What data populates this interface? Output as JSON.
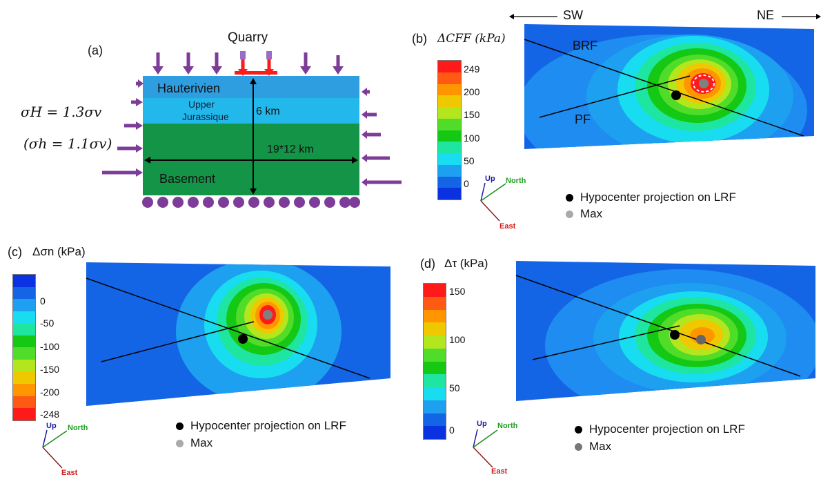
{
  "panel_a": {
    "label": "(a)",
    "quarry": "Quarry",
    "layers": [
      "Hauterivien",
      "Upper",
      "Jurassique",
      "Basement"
    ],
    "depth": "6 km",
    "size": "19*12 km",
    "sigma_H": "σH = 1.3σv",
    "sigma_h": "(σh = 1.1σv)"
  },
  "panel_b": {
    "label": "(b)",
    "title": "ΔCFF (kPa)",
    "ticks": [
      "249",
      "200",
      "150",
      "100",
      "50",
      "0"
    ],
    "dir_left": "SW",
    "dir_right": "NE",
    "fault_brf": "BRF",
    "fault_pf": "PF",
    "legend_hypo": "Hypocenter projection on LRF",
    "legend_max": "Max"
  },
  "panel_c": {
    "label": "(c)",
    "title": "Δσn (kPa)",
    "ticks": [
      "0",
      "-50",
      "-100",
      "-150",
      "-200",
      "-248"
    ],
    "legend_hypo": "Hypocenter projection on LRF",
    "legend_max": "Max"
  },
  "panel_d": {
    "label": "(d)",
    "title": "Δτ (kPa)",
    "ticks": [
      "150",
      "100",
      "50",
      "0"
    ],
    "legend_hypo": "Hypocenter projection on LRF",
    "legend_max": "Max"
  },
  "axes_triad": {
    "up": "Up",
    "north": "North",
    "east": "East"
  },
  "colors": {
    "red": "#ff1a1a",
    "orange": "#ff8c00",
    "yellow": "#e6d800",
    "lime": "#7ee02a",
    "green": "#14c814",
    "teal": "#1ee6a0",
    "cyan": "#18dcf0",
    "sky": "#1ea0f0",
    "blue": "#1464e6",
    "navy": "#0a32e0",
    "purple": "#7d3c98"
  }
}
